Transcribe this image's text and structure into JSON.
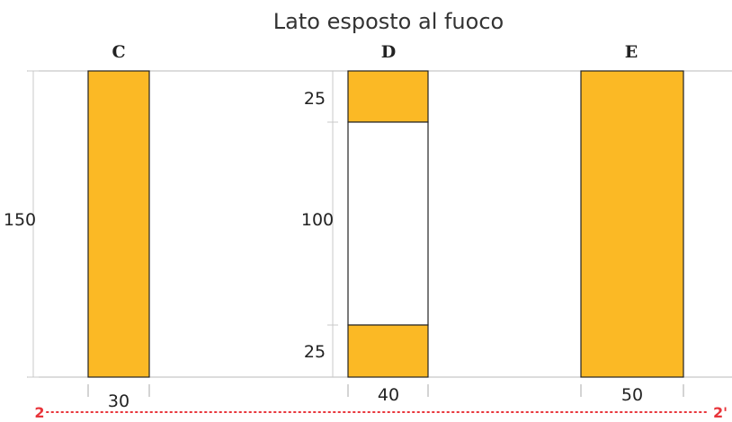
{
  "title": "Lato esposto al fuoco",
  "colors": {
    "fill": "#fbb925",
    "outline": "#222222",
    "guide": "#b9b9b9",
    "section_line": "#e8343a"
  },
  "sections": [
    {
      "label": "C",
      "height_label": "150",
      "width_label": "30",
      "segments": [
        "fill"
      ]
    },
    {
      "label": "D",
      "top_label": "25",
      "middle_label": "100",
      "bottom_label": "25",
      "width_label": "40",
      "segments": [
        "fill",
        "void",
        "fill"
      ]
    },
    {
      "label": "E",
      "width_label": "50",
      "segments": [
        "fill"
      ]
    }
  ],
  "section_line": {
    "start": "2",
    "end": "2'"
  }
}
